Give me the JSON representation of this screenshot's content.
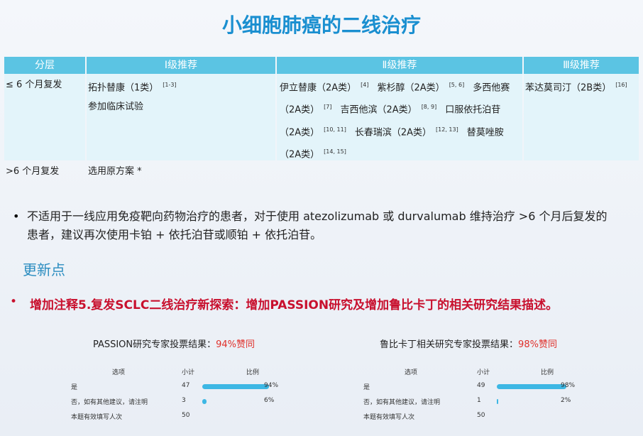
{
  "header": {
    "title": "小细胞肺癌的二线治疗"
  },
  "table": {
    "columns": [
      "分层",
      "Ⅰ级推荐",
      "Ⅱ级推荐",
      "Ⅲ级推荐"
    ],
    "rows": [
      {
        "stratum": "≤ 6 个月复发",
        "level1": [
          {
            "text": "拓扑替康（1类）",
            "ref": "[1-3]"
          },
          {
            "text": "参加临床试验"
          }
        ],
        "level2": [
          {
            "text": "伊立替康（2A类）",
            "ref": "[4]"
          },
          {
            "text": "紫杉醇（2A类）",
            "ref": "[5, 6]"
          },
          {
            "text": "多西他赛（2A类）",
            "ref": "[7]"
          },
          {
            "text": "吉西他滨（2A类）",
            "ref": "[8, 9]"
          },
          {
            "text": "口服依托泊苷（2A类）",
            "ref": "[10, 11]"
          },
          {
            "text": "长春瑞滨（2A类）",
            "ref": "[12, 13]"
          },
          {
            "text": "替莫唑胺（2A类）",
            "ref": "[14, 15]"
          }
        ],
        "level3": [
          {
            "text": "苯达莫司汀（2B类）",
            "ref": "[16]"
          }
        ]
      },
      {
        "stratum": ">6 个月复发",
        "level1": [
          {
            "text": "选用原方案 *"
          }
        ]
      }
    ]
  },
  "note": "不适用于一线应用免疫靶向药物治疗的患者，对于使用 atezolizumab 或 durvalumab 维持治疗 >6 个月后复发的患者，建议再次使用卡铂 + 依托泊苷或顺铂 + 依托泊苷。",
  "update": {
    "heading": "更新点",
    "item": "增加注释5.复发SCLC二线治疗新探索：增加PASSION研究及增加鲁比卡丁的相关研究结果描述。"
  },
  "polls": [
    {
      "title": "PASSION研究专家投票结果：",
      "highlight": "94%赞同",
      "columns": [
        "选项",
        "小计",
        "比例"
      ],
      "rows": [
        {
          "option": "是",
          "count": 47,
          "percent": 94,
          "percent_label": "94%"
        },
        {
          "option": "否，如有其他建议，请注明",
          "count": 3,
          "percent": 6,
          "percent_label": "6%"
        }
      ],
      "total_label": "本题有效填写人次",
      "total": 50
    },
    {
      "title": "鲁比卡丁相关研究专家投票结果：",
      "highlight": "98%赞同",
      "columns": [
        "选项",
        "小计",
        "比例"
      ],
      "rows": [
        {
          "option": "是",
          "count": 49,
          "percent": 98,
          "percent_label": "98%"
        },
        {
          "option": "否，如有其他建议，请注明",
          "count": 1,
          "percent": 2,
          "percent_label": "2%"
        }
      ],
      "total_label": "本题有效填写人次",
      "total": 50
    }
  ]
}
